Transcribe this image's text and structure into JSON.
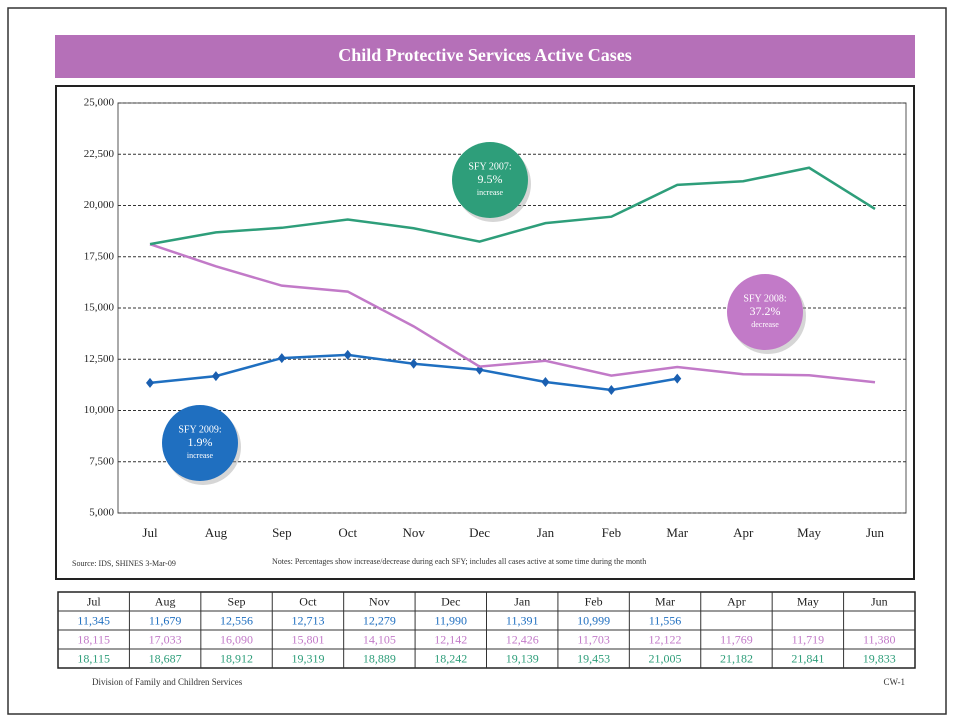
{
  "chart_data": {
    "type": "line",
    "title": "Child Protective Services Active Cases",
    "categories": [
      "Jul",
      "Aug",
      "Sep",
      "Oct",
      "Nov",
      "Dec",
      "Jan",
      "Feb",
      "Mar",
      "Apr",
      "May",
      "Jun"
    ],
    "series": [
      {
        "color": "#1f6fc0",
        "values": [
          11345,
          11679,
          12556,
          12713,
          12279,
          11990,
          11391,
          10999,
          11556,
          null,
          null,
          null
        ],
        "value_labels": [
          "11,345",
          "11,679",
          "12,556",
          "12,713",
          "12,279",
          "11,990",
          "11,391",
          "10,999",
          "11,556",
          null,
          null,
          null
        ]
      },
      {
        "color": "#c27ac8",
        "values": [
          18115,
          17033,
          16090,
          15801,
          14105,
          12142,
          12426,
          11703,
          12122,
          11769,
          11719,
          11380
        ],
        "value_labels": [
          "18,115",
          "17,033",
          "16,090",
          "15,801",
          "14,105",
          "12,142",
          "12,426",
          "11,703",
          "12,122",
          "11,769",
          "11,719",
          "11,380"
        ]
      },
      {
        "color": "#2e9e7a",
        "values": [
          18115,
          18687,
          18912,
          19319,
          18889,
          18242,
          19139,
          19453,
          21005,
          21182,
          21841,
          19833
        ],
        "value_labels": [
          "18,115",
          "18,687",
          "18,912",
          "19,319",
          "18,889",
          "18,242",
          "19,139",
          "19,453",
          "21,005",
          "21,182",
          "21,841",
          "19,833"
        ]
      }
    ],
    "ylim": [
      5000,
      25000
    ],
    "yticks": [
      {
        "value": 5000,
        "label": "5,000"
      },
      {
        "value": 7500,
        "label": "7,500"
      },
      {
        "value": 10000,
        "label": "10,000"
      },
      {
        "value": 12500,
        "label": "12,500"
      },
      {
        "value": 15000,
        "label": "15,000"
      },
      {
        "value": 17500,
        "label": "17,500"
      },
      {
        "value": 20000,
        "label": "20,000"
      },
      {
        "value": 22500,
        "label": "22,500"
      },
      {
        "value": 25000,
        "label": "25,000"
      }
    ],
    "grid": true,
    "annotations": [
      {
        "lines": [
          "SFY 2007:",
          "9.5%",
          "increase"
        ]
      },
      {
        "lines": [
          "SFY 2008:",
          "37.2%",
          "decrease"
        ]
      },
      {
        "lines": [
          "SFY 2009:",
          "1.9%",
          "increase"
        ]
      }
    ],
    "source": "Source: IDS, SHINES 3-Mar-09",
    "notes": "Notes: Percentages show increase/decrease during each SFY; includes all cases active at some time during the month",
    "footer_left": "Division of Family and Children Services",
    "footer_right": "CW-1"
  }
}
